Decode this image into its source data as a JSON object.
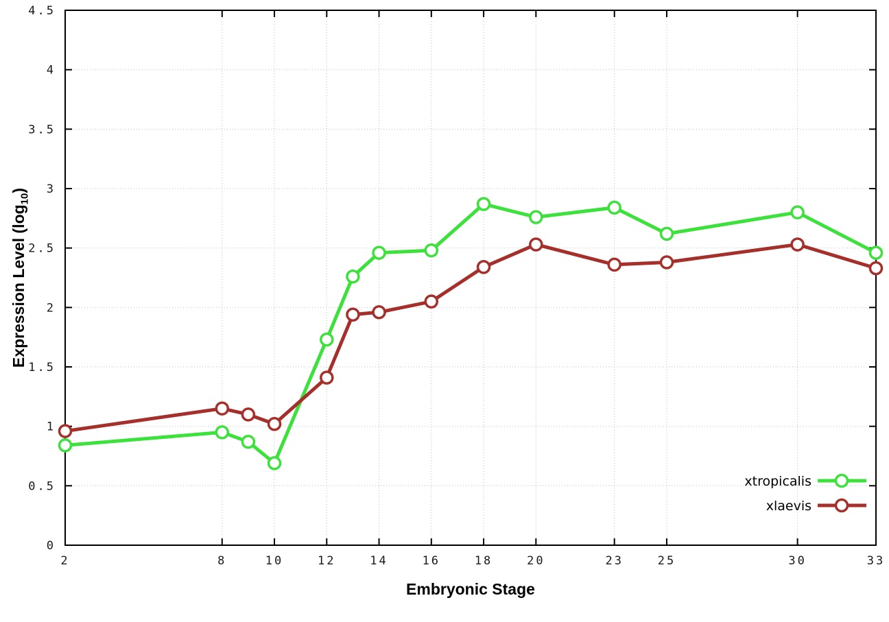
{
  "page": {
    "background": "#ffffff"
  },
  "axes": {
    "x_label": "Embryonic Stage",
    "y_label_main": "Expression Level (log",
    "y_label_sub": "10",
    "y_label_close": ")"
  },
  "chart_data": {
    "type": "line",
    "title": "",
    "xlabel": "Embryonic Stage",
    "ylabel": "Expression Level (log10)",
    "xlim": [
      2,
      33
    ],
    "ylim": [
      0,
      4.5
    ],
    "x_ticks": [
      2,
      8,
      10,
      12,
      14,
      16,
      18,
      20,
      23,
      25,
      30,
      33
    ],
    "y_ticks": [
      0,
      0.5,
      1,
      1.5,
      2,
      2.5,
      3,
      3.5,
      4,
      4.5
    ],
    "grid": true,
    "legend_position": "bottom-right",
    "x": [
      2,
      8,
      9,
      10,
      12,
      13,
      14,
      16,
      18,
      20,
      23,
      25,
      30,
      33
    ],
    "series": [
      {
        "name": "xtropicalis",
        "color": "#3ce13c",
        "values": [
          0.84,
          0.95,
          0.87,
          0.69,
          1.73,
          2.26,
          2.46,
          2.48,
          2.87,
          2.76,
          2.84,
          2.62,
          2.8,
          2.46
        ]
      },
      {
        "name": "xlaevis",
        "color": "#a52f2a",
        "values": [
          0.96,
          1.15,
          1.1,
          1.02,
          1.41,
          1.94,
          1.96,
          2.05,
          2.34,
          2.53,
          2.36,
          2.38,
          2.53,
          2.33
        ]
      }
    ],
    "colors": {
      "grid": "#bdbdbd",
      "border": "#000000",
      "tick_text": "#1a1a1a",
      "marker_fill": "#ffffff"
    }
  }
}
